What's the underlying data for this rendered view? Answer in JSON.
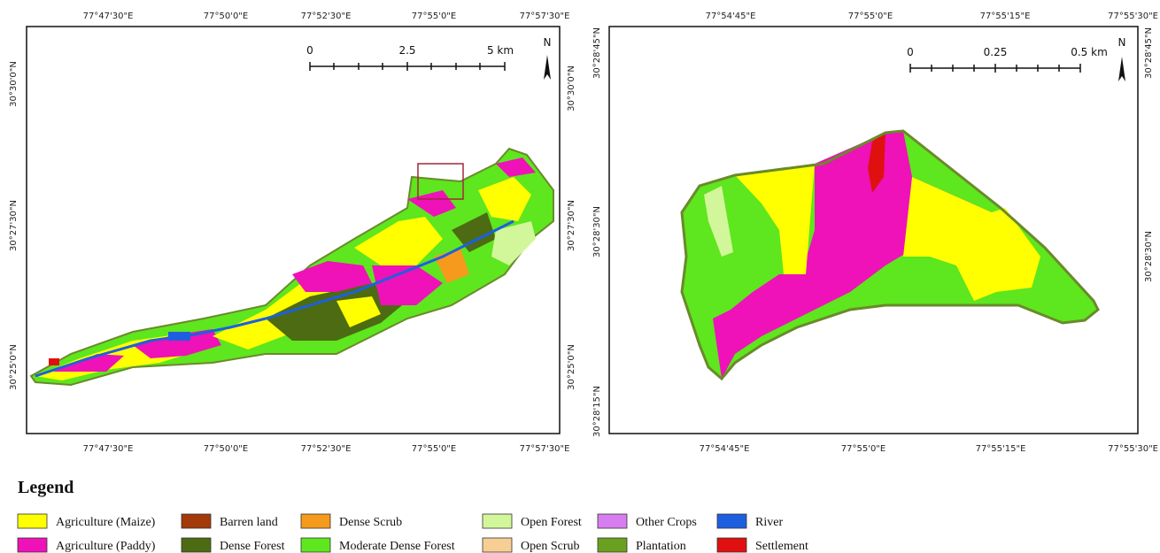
{
  "left_map": {
    "top_labels": [
      "77°47'30\"E",
      "77°50'0\"E",
      "77°52'30\"E",
      "77°55'0\"E",
      "77°57'30\"E"
    ],
    "bottom_labels": [
      "77°47'30\"E",
      "77°50'0\"E",
      "77°52'30\"E",
      "77°55'0\"E",
      "77°57'30\"E"
    ],
    "left_labels": [
      "30°30'0\"N",
      "30°27'30\"N",
      "30°25'0\"N"
    ],
    "right_labels": [
      "30°30'0\"N",
      "30°27'30\"N",
      "30°25'0\"N"
    ],
    "scale_labels": [
      "0",
      "2.5",
      "5 km"
    ],
    "north": "N"
  },
  "right_map": {
    "top_labels": [
      "77°54'45\"E",
      "77°55'0\"E",
      "77°55'15\"E",
      "77°55'30\"E"
    ],
    "bottom_labels": [
      "77°54'45\"E",
      "77°55'0\"E",
      "77°55'15\"E",
      "77°55'30\"E"
    ],
    "left_labels": [
      "30°28'45\"N",
      "30°28'30\"N",
      "30°28'15\"N"
    ],
    "right_labels": [
      "30°28'45\"N",
      "30°28'30\"N"
    ],
    "scale_labels": [
      "0",
      "0.25",
      "0.5 km"
    ],
    "north": "N"
  },
  "legend": {
    "title": "Legend",
    "items": [
      {
        "label": "Agriculture (Maize)",
        "color": "#ffff00"
      },
      {
        "label": "Agriculture (Paddy)",
        "color": "#ee12b8"
      },
      {
        "label": "Barren land",
        "color": "#a33a0a"
      },
      {
        "label": "Dense Forest",
        "color": "#4c6b12"
      },
      {
        "label": "Dense Scrub",
        "color": "#f59a1c"
      },
      {
        "label": "Moderate Dense Forest",
        "color": "#5ee61e"
      },
      {
        "label": "Open Forest",
        "color": "#d2f79a"
      },
      {
        "label": "Open Scrub",
        "color": "#f7cf94"
      },
      {
        "label": "Other Crops",
        "color": "#d77df0"
      },
      {
        "label": "Plantation",
        "color": "#6aa020"
      },
      {
        "label": "River",
        "color": "#1e5fe0"
      },
      {
        "label": "Settlement",
        "color": "#e01010"
      }
    ]
  }
}
